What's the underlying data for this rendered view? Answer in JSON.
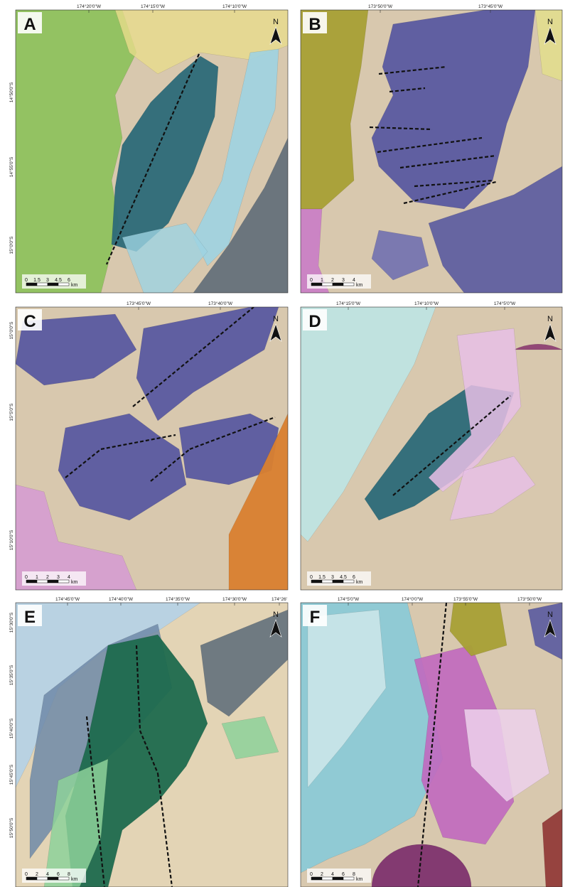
{
  "panels": [
    {
      "label": "A",
      "north": "N",
      "top_labels": [
        "174°20'0\"W",
        "174°15'0\"W",
        "174°10'0\"W"
      ],
      "left_labels": [
        "14°50'0\"S",
        "14°55'0\"S",
        "15°0'0\"S"
      ],
      "scale": [
        "0",
        "1.5",
        "3",
        "4.5",
        "6"
      ],
      "unit": "km"
    },
    {
      "label": "B",
      "north": "N",
      "top_labels": [
        "173°50'0\"W",
        "173°45'0\"W"
      ],
      "left_labels": [],
      "scale": [
        "0",
        "1",
        "2",
        "3",
        "4"
      ],
      "unit": "km"
    },
    {
      "label": "C",
      "north": "N",
      "top_labels": [
        "173°45'0\"W",
        "173°40'0\"W"
      ],
      "left_labels": [
        "15°0'0\"S",
        "15°5'0\"S",
        "15°10'0\"S"
      ],
      "scale": [
        "0",
        "1",
        "2",
        "3",
        "4"
      ],
      "unit": "km"
    },
    {
      "label": "D",
      "north": "N",
      "top_labels": [
        "174°15'0\"W",
        "174°10'0\"W",
        "174°5'0\"W"
      ],
      "left_labels": [],
      "scale": [
        "0",
        "1.5",
        "3",
        "4.5",
        "6"
      ],
      "unit": "km"
    },
    {
      "label": "E",
      "north": "N",
      "top_labels": [
        "174°45'0\"W",
        "174°40'0\"W",
        "174°35'0\"W",
        "174°30'0\"W",
        "174°26'"
      ],
      "left_labels": [
        "15°30'0\"S",
        "15°35'0\"S",
        "15°40'0\"S",
        "15°45'0\"S",
        "15°50'0\"S"
      ],
      "scale": [
        "0",
        "2",
        "4",
        "6",
        "8"
      ],
      "unit": "km"
    },
    {
      "label": "F",
      "north": "N",
      "top_labels": [
        "174°5'0\"W",
        "174°0'0\"W",
        "173°55'0\"W",
        "173°50'0\"W"
      ],
      "left_labels": [],
      "scale": [
        "0",
        "2",
        "4",
        "6",
        "8"
      ],
      "unit": "km"
    }
  ]
}
